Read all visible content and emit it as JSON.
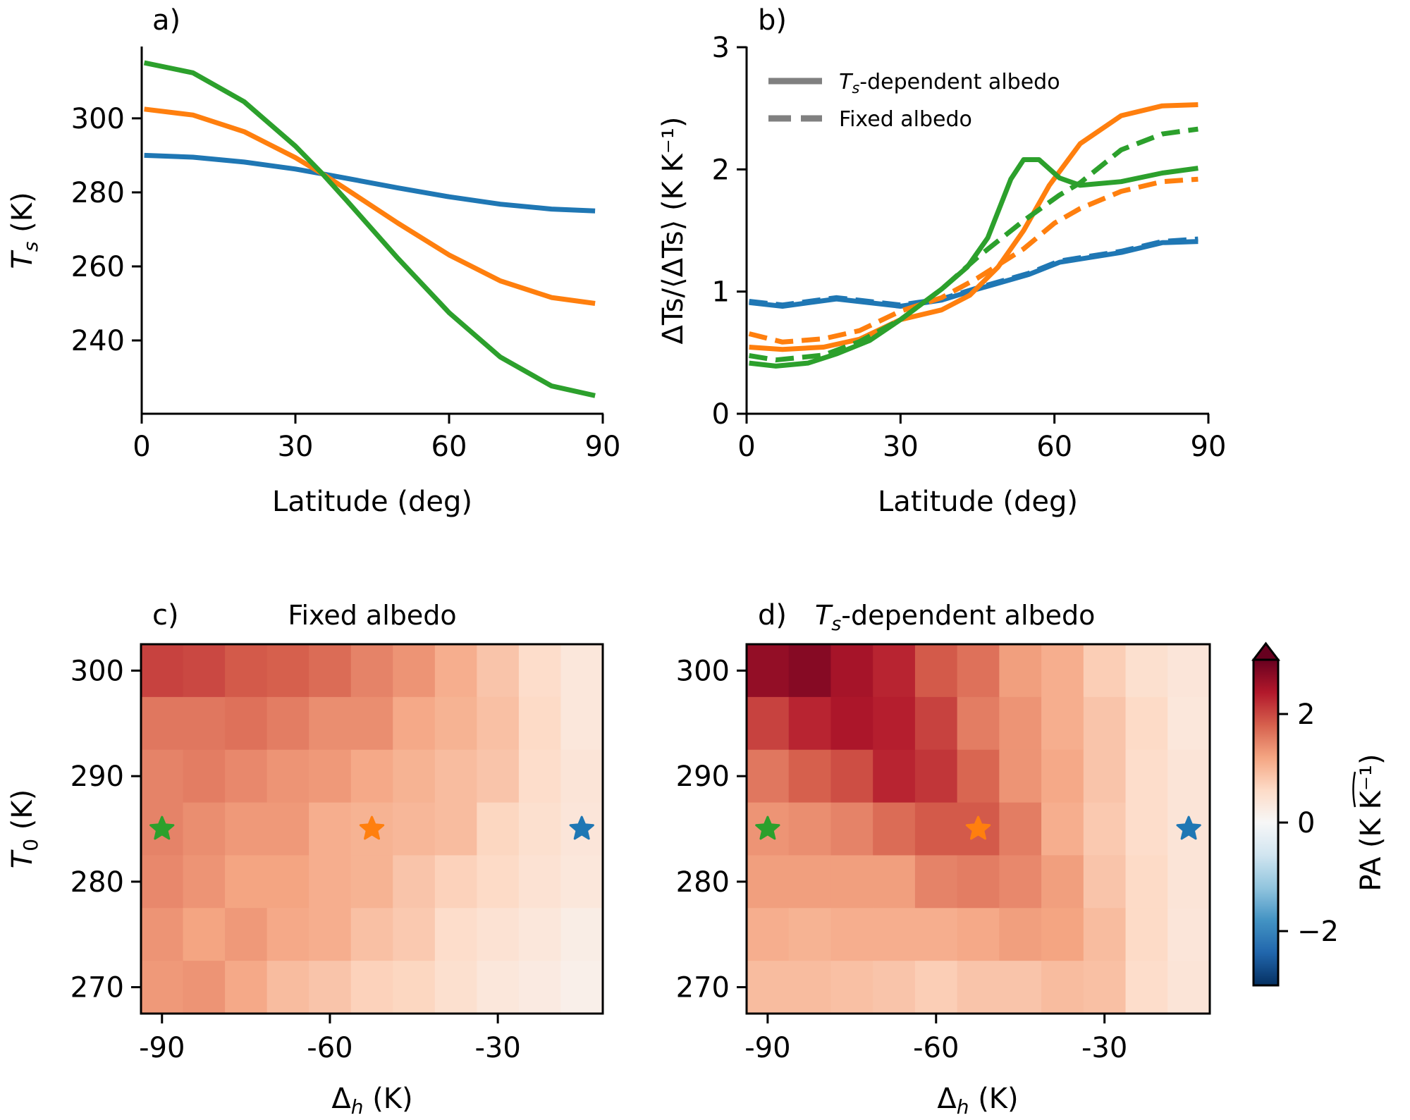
{
  "chart_data": [
    {
      "id": "a",
      "type": "line",
      "panel_label": "a)",
      "xlabel": "Latitude (deg)",
      "ylabel_main": "T",
      "ylabel_sub": "s",
      "ylabel_unit": " (K)",
      "xlim": [
        0,
        90
      ],
      "ylim": [
        220.2,
        319.4
      ],
      "xticks": [
        0,
        30,
        60,
        90
      ],
      "xtick_labels": [
        "0",
        "30",
        "60",
        "90"
      ],
      "yticks": [
        240,
        260,
        280,
        300
      ],
      "ytick_labels": [
        "240",
        "260",
        "280",
        "300"
      ],
      "grid": false,
      "x": [
        0.5,
        10,
        20,
        30,
        35.3,
        40,
        50,
        60,
        70,
        80,
        88.5
      ],
      "series": [
        {
          "name": "blue",
          "color": "#1f77b4",
          "style": "solid",
          "values": [
            290.0,
            289.5,
            288.2,
            286.3,
            285.0,
            283.8,
            281.2,
            278.8,
            276.8,
            275.5,
            275.0
          ]
        },
        {
          "name": "orange",
          "color": "#ff7f0e",
          "style": "solid",
          "values": [
            302.5,
            300.9,
            296.4,
            289.4,
            285.0,
            280.8,
            271.7,
            263.1,
            256.1,
            251.6,
            250.0
          ]
        },
        {
          "name": "green",
          "color": "#2ca02c",
          "style": "solid",
          "values": [
            315.0,
            312.3,
            304.5,
            292.5,
            285.0,
            277.8,
            262.2,
            247.5,
            235.5,
            227.7,
            225.1
          ]
        }
      ]
    },
    {
      "id": "b",
      "type": "line",
      "panel_label": "b)",
      "xlabel": "Latitude (deg)",
      "ylabel": "ΔTs/⟨ΔTs⟩ (K K⁻¹)",
      "xlim": [
        0,
        90
      ],
      "ylim": [
        0,
        3
      ],
      "xticks": [
        0,
        30,
        60,
        90
      ],
      "xtick_labels": [
        "0",
        "30",
        "60",
        "90"
      ],
      "yticks": [
        0,
        1,
        2,
        3
      ],
      "ytick_labels": [
        "0",
        "1",
        "2",
        "3"
      ],
      "grid": false,
      "legend": {
        "placement": "top-left",
        "entries": [
          {
            "label_main": "T",
            "label_sub": "s",
            "label_rest": "-dependent albedo",
            "style": "solid",
            "color": "#808080"
          },
          {
            "label_main": "Fixed albedo",
            "label_sub": "",
            "label_rest": "",
            "style": "dashed",
            "color": "#808080"
          }
        ]
      },
      "series": [
        {
          "name": "blue-fixed",
          "color": "#1f77b4",
          "style": "dashed",
          "x": [
            0.5,
            7,
            17.5,
            30,
            38,
            45,
            55,
            61,
            73,
            81,
            88
          ],
          "values": [
            0.92,
            0.89,
            0.95,
            0.89,
            0.94,
            1.03,
            1.15,
            1.25,
            1.33,
            1.41,
            1.43
          ]
        },
        {
          "name": "blue-dependent",
          "color": "#1f77b4",
          "style": "solid",
          "x": [
            0.5,
            7,
            17.5,
            30,
            38,
            45,
            55,
            61,
            73,
            81,
            88
          ],
          "values": [
            0.91,
            0.88,
            0.94,
            0.88,
            0.93,
            1.02,
            1.14,
            1.24,
            1.32,
            1.4,
            1.41
          ]
        },
        {
          "name": "orange-fixed",
          "color": "#ff7f0e",
          "style": "dashed",
          "x": [
            0.5,
            7,
            15,
            22,
            30,
            38,
            45,
            54,
            60,
            65,
            73,
            81,
            88
          ],
          "values": [
            0.655,
            0.587,
            0.614,
            0.68,
            0.84,
            0.95,
            1.11,
            1.35,
            1.56,
            1.68,
            1.82,
            1.9,
            1.92
          ]
        },
        {
          "name": "orange-dependent",
          "color": "#ff7f0e",
          "style": "solid",
          "x": [
            0.5,
            7,
            15,
            22,
            30,
            38,
            43.5,
            49,
            54,
            59,
            65,
            73,
            81,
            88
          ],
          "values": [
            0.545,
            0.526,
            0.545,
            0.61,
            0.77,
            0.85,
            0.97,
            1.2,
            1.5,
            1.87,
            2.21,
            2.44,
            2.52,
            2.53
          ]
        },
        {
          "name": "green-fixed",
          "color": "#2ca02c",
          "style": "dashed",
          "x": [
            0.5,
            5.7,
            15,
            22,
            30,
            38,
            45,
            54,
            61,
            65,
            73,
            81,
            88
          ],
          "values": [
            0.476,
            0.44,
            0.48,
            0.59,
            0.77,
            1.02,
            1.28,
            1.58,
            1.79,
            1.89,
            2.16,
            2.29,
            2.33
          ]
        },
        {
          "name": "green-dependent",
          "color": "#2ca02c",
          "style": "solid",
          "x": [
            0.5,
            5.7,
            12,
            17.5,
            24,
            30,
            38,
            43,
            47,
            51.5,
            54,
            57,
            61,
            65,
            73,
            81,
            88
          ],
          "values": [
            0.415,
            0.39,
            0.415,
            0.49,
            0.6,
            0.77,
            1.02,
            1.2,
            1.44,
            1.92,
            2.08,
            2.08,
            1.93,
            1.87,
            1.9,
            1.97,
            2.01
          ]
        }
      ]
    },
    {
      "id": "c",
      "type": "heatmap",
      "panel_label": "c)",
      "title": "Fixed albedo",
      "xlabel_main": "Δ",
      "xlabel_sub": "h",
      "xlabel_unit": " (K)",
      "ylabel_main": "T",
      "ylabel_sub": "0",
      "ylabel_unit": " (K)",
      "x": [
        -90,
        -82.5,
        -75,
        -67.5,
        -60,
        -52.5,
        -45,
        -37.5,
        -30,
        -22.5,
        -15
      ],
      "y": [
        300,
        295,
        290,
        285,
        280,
        275,
        270
      ],
      "xticks": [
        -90,
        -60,
        -30
      ],
      "xtick_labels": [
        "-90",
        "-60",
        "-30"
      ],
      "yticks": [
        270,
        280,
        290,
        300
      ],
      "ytick_labels": [
        "270",
        "280",
        "290",
        "300"
      ],
      "colormap": "RdBu_r",
      "vmin": -3,
      "vmax": 3,
      "values": [
        [
          2.05,
          2.0,
          1.85,
          1.8,
          1.7,
          1.5,
          1.35,
          1.1,
          0.85,
          0.55,
          0.35
        ],
        [
          1.6,
          1.6,
          1.65,
          1.55,
          1.4,
          1.4,
          1.15,
          1.05,
          0.9,
          0.6,
          0.35
        ],
        [
          1.5,
          1.55,
          1.45,
          1.35,
          1.3,
          1.15,
          1.05,
          0.95,
          0.85,
          0.55,
          0.4
        ],
        [
          1.5,
          1.4,
          1.3,
          1.3,
          1.1,
          1.05,
          1.0,
          0.95,
          0.65,
          0.5,
          0.38
        ],
        [
          1.45,
          1.35,
          1.2,
          1.2,
          1.1,
          1.05,
          0.85,
          0.7,
          0.6,
          0.45,
          0.35
        ],
        [
          1.35,
          1.2,
          1.3,
          1.15,
          1.1,
          0.9,
          0.8,
          0.55,
          0.45,
          0.35,
          0.22
        ],
        [
          1.3,
          1.35,
          1.15,
          0.95,
          0.85,
          0.7,
          0.65,
          0.5,
          0.35,
          0.28,
          0.18
        ]
      ],
      "markers": [
        {
          "x": -90,
          "y": 285,
          "color": "#2ca02c",
          "shape": "star"
        },
        {
          "x": -52.5,
          "y": 285,
          "color": "#ff7f0e",
          "shape": "star"
        },
        {
          "x": -15,
          "y": 285,
          "color": "#1f77b4",
          "shape": "star"
        }
      ]
    },
    {
      "id": "d",
      "type": "heatmap",
      "panel_label": "d)",
      "title_main": "T",
      "title_sub": "s",
      "title_rest": "-dependent albedo",
      "xlabel_main": "Δ",
      "xlabel_sub": "h",
      "xlabel_unit": " (K)",
      "x": [
        -90,
        -82.5,
        -75,
        -67.5,
        -60,
        -52.5,
        -45,
        -37.5,
        -30,
        -22.5,
        -15
      ],
      "y": [
        300,
        295,
        290,
        285,
        280,
        275,
        270
      ],
      "xticks": [
        -90,
        -60,
        -30
      ],
      "xtick_labels": [
        "-90",
        "-60",
        "-30"
      ],
      "yticks": [
        270,
        280,
        290,
        300
      ],
      "ytick_labels": [
        "270",
        "280",
        "290",
        "300"
      ],
      "colormap": "RdBu_r",
      "vmin": -3,
      "vmax": 3,
      "values": [
        [
          2.65,
          2.75,
          2.5,
          2.3,
          1.85,
          1.65,
          1.25,
          1.1,
          0.75,
          0.5,
          0.38
        ],
        [
          2.05,
          2.3,
          2.45,
          2.35,
          2.05,
          1.55,
          1.35,
          1.1,
          0.85,
          0.6,
          0.35
        ],
        [
          1.6,
          1.8,
          1.95,
          2.3,
          2.15,
          1.75,
          1.35,
          1.15,
          0.85,
          0.55,
          0.4
        ],
        [
          1.35,
          1.4,
          1.5,
          1.7,
          1.85,
          1.85,
          1.55,
          1.1,
          0.8,
          0.55,
          0.4
        ],
        [
          1.25,
          1.25,
          1.25,
          1.25,
          1.5,
          1.55,
          1.45,
          1.25,
          0.85,
          0.6,
          0.4
        ],
        [
          1.1,
          1.05,
          1.1,
          1.1,
          1.1,
          1.15,
          1.25,
          1.2,
          0.95,
          0.6,
          0.38
        ],
        [
          0.95,
          0.95,
          0.9,
          0.85,
          0.75,
          0.85,
          0.85,
          0.95,
          0.9,
          0.55,
          0.4
        ]
      ],
      "markers": [
        {
          "x": -90,
          "y": 285,
          "color": "#2ca02c",
          "shape": "star"
        },
        {
          "x": -52.5,
          "y": 285,
          "color": "#ff7f0e",
          "shape": "star"
        },
        {
          "x": -15,
          "y": 285,
          "color": "#1f77b4",
          "shape": "star"
        }
      ]
    },
    {
      "id": "colorbar",
      "type": "colorbar",
      "colormap": "RdBu_r",
      "vmin": -3,
      "vmax": 3,
      "extend": "max",
      "ticks": [
        -2,
        0,
        2
      ],
      "tick_labels": [
        "−2",
        "0",
        "2"
      ],
      "label_main": "PA",
      "label_unit": " (K K⁻¹)"
    }
  ]
}
